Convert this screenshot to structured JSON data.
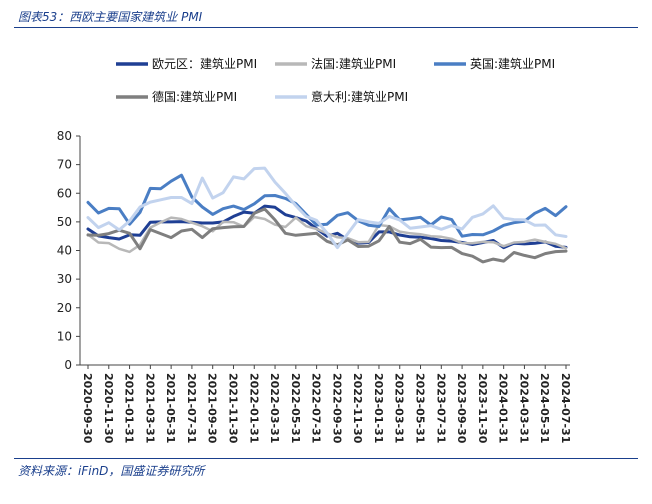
{
  "header": {
    "title": "图表53：西欧主要国家建筑业 PMI"
  },
  "footer": {
    "source": "资料来源：iFinD，国盛证券研究所"
  },
  "chart_data": {
    "type": "line",
    "title": "",
    "xlabel": "",
    "ylabel": "",
    "ylim": [
      0,
      80
    ],
    "yticks": [
      0,
      10,
      20,
      30,
      40,
      50,
      60,
      70,
      80
    ],
    "grid": false,
    "legend_position": "top",
    "x": [
      "2020-09-30",
      "2020-10-31",
      "2020-11-30",
      "2020-12-31",
      "2021-01-31",
      "2021-02-28",
      "2021-03-31",
      "2021-04-30",
      "2021-05-31",
      "2021-06-30",
      "2021-07-31",
      "2021-08-31",
      "2021-09-30",
      "2021-10-31",
      "2021-11-30",
      "2021-12-31",
      "2022-01-31",
      "2022-02-28",
      "2022-03-31",
      "2022-04-30",
      "2022-05-31",
      "2022-06-30",
      "2022-07-31",
      "2022-08-31",
      "2022-09-30",
      "2022-10-31",
      "2022-11-30",
      "2022-12-31",
      "2023-01-31",
      "2023-02-28",
      "2023-03-31",
      "2023-04-30",
      "2023-05-31",
      "2023-06-30",
      "2023-07-31",
      "2023-08-31",
      "2023-09-30",
      "2023-10-31",
      "2023-11-30",
      "2023-12-31",
      "2024-01-31",
      "2024-02-29",
      "2024-03-31",
      "2024-04-30",
      "2024-05-31",
      "2024-06-30",
      "2024-07-31"
    ],
    "xtick_labels": [
      "2020-09-30",
      "2020-11-30",
      "2021-01-31",
      "2021-03-31",
      "2021-05-31",
      "2021-07-31",
      "2021-09-30",
      "2021-11-30",
      "2022-01-31",
      "2022-03-31",
      "2022-05-31",
      "2022-07-31",
      "2022-09-30",
      "2022-11-30",
      "2023-01-31",
      "2023-03-31",
      "2023-05-31",
      "2023-07-31",
      "2023-09-30",
      "2023-11-30",
      "2024-01-31",
      "2024-03-31",
      "2024-05-31",
      "2024-07-31"
    ],
    "series": [
      {
        "name": "欧元区：建筑业PMI",
        "color": "#1f3f94",
        "width": 3,
        "values": [
          47.5,
          45.1,
          44.5,
          44.0,
          45.5,
          45.3,
          49.9,
          50.0,
          50.0,
          50.1,
          49.9,
          49.6,
          49.6,
          50.0,
          51.9,
          53.4,
          53.0,
          55.5,
          55.1,
          52.5,
          51.5,
          50.3,
          47.6,
          45.0,
          46.0,
          43.7,
          42.6,
          42.8,
          46.5,
          46.5,
          45.4,
          44.8,
          44.6,
          44.2,
          43.5,
          43.3,
          42.8,
          42.1,
          42.8,
          43.5,
          41.0,
          42.5,
          42.3,
          42.5,
          43.0,
          41.5,
          41.1
        ]
      },
      {
        "name": "法国:建筑业PMI",
        "color": "#b8b8b8",
        "width": 2.5,
        "values": [
          45.6,
          42.8,
          42.6,
          40.6,
          39.5,
          42.0,
          48.0,
          49.8,
          51.5,
          51.0,
          49.7,
          48.5,
          46.7,
          50.0,
          49.9,
          48.3,
          51.7,
          51.0,
          49.0,
          48.2,
          51.5,
          48.5,
          47.5,
          46.0,
          44.6,
          44.3,
          42.9,
          43.0,
          48.9,
          48.5,
          46.6,
          46.0,
          45.7,
          45.0,
          44.8,
          44.1,
          42.6,
          42.5,
          43.0,
          42.9,
          41.5,
          42.8,
          43.0,
          43.8,
          43.0,
          42.3,
          40.8
        ]
      },
      {
        "name": "英国:建筑业PMI",
        "color": "#4a7ec4",
        "width": 3,
        "values": [
          56.8,
          53.1,
          54.7,
          54.6,
          49.2,
          53.3,
          61.7,
          61.6,
          64.2,
          66.3,
          58.7,
          55.2,
          52.6,
          54.6,
          55.5,
          54.3,
          56.3,
          59.1,
          59.2,
          58.2,
          56.4,
          52.6,
          48.9,
          49.2,
          52.3,
          53.2,
          50.4,
          48.8,
          48.4,
          54.6,
          50.7,
          51.1,
          51.6,
          48.9,
          51.7,
          50.8,
          45.0,
          45.6,
          45.5,
          46.8,
          48.8,
          49.7,
          50.2,
          53.0,
          54.7,
          52.2,
          55.3
        ]
      },
      {
        "name": "德国:建筑业PMI",
        "color": "#7f7f7f",
        "width": 3,
        "values": [
          45.4,
          45.3,
          45.9,
          47.1,
          46.0,
          40.6,
          47.3,
          45.9,
          44.5,
          46.8,
          47.4,
          44.5,
          47.6,
          48.0,
          48.3,
          48.4,
          53.0,
          54.5,
          50.7,
          46.0,
          45.3,
          45.7,
          46.0,
          43.2,
          42.0,
          43.7,
          41.4,
          41.5,
          43.4,
          48.4,
          42.9,
          42.4,
          43.9,
          41.2,
          41.0,
          41.1,
          38.9,
          38.0,
          36.0,
          37.0,
          36.3,
          39.3,
          38.3,
          37.5,
          38.9,
          39.6,
          39.8
        ]
      },
      {
        "name": "意大利:建筑业PMI",
        "color": "#c2d3ee",
        "width": 3,
        "values": [
          51.5,
          48.0,
          49.7,
          47.2,
          50.3,
          55.2,
          56.9,
          57.7,
          58.5,
          58.5,
          56.4,
          65.3,
          58.3,
          60.2,
          65.7,
          65.0,
          68.6,
          68.8,
          63.9,
          60.0,
          55.7,
          51.9,
          50.5,
          46.1,
          41.0,
          45.9,
          50.8,
          50.0,
          49.5,
          51.9,
          50.7,
          47.8,
          48.2,
          48.7,
          47.4,
          48.7,
          47.5,
          51.6,
          52.8,
          55.6,
          51.3,
          50.8,
          50.7,
          48.8,
          48.9,
          45.5,
          44.9
        ]
      }
    ]
  }
}
